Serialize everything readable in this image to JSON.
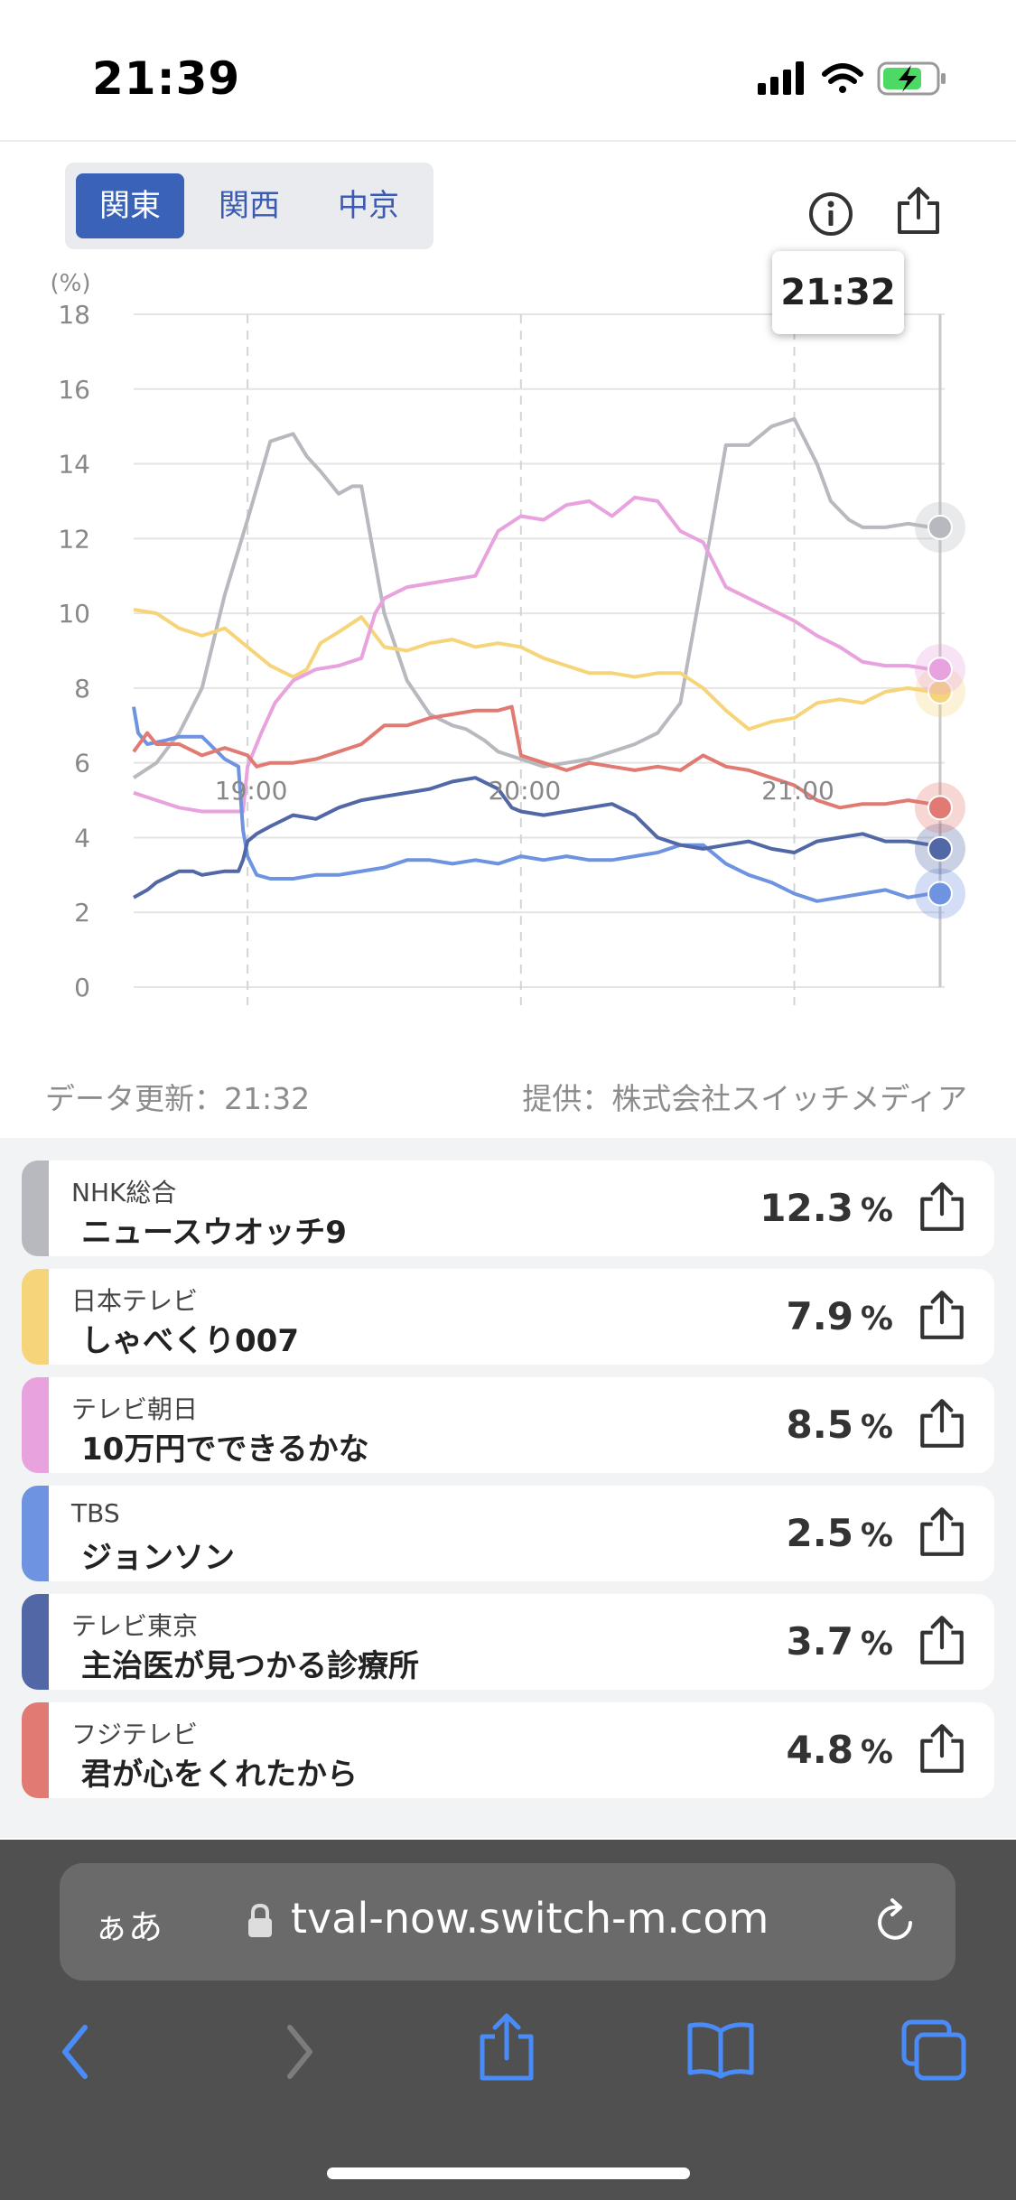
{
  "status_bar": {
    "time": "21:39"
  },
  "region_tabs": [
    {
      "label": "関東",
      "active": true
    },
    {
      "label": "関西",
      "active": false
    },
    {
      "label": "中京",
      "active": false
    }
  ],
  "tooltip_time": "21:32",
  "chart_data": {
    "type": "line",
    "ylabel": "(%)",
    "ylim": [
      0,
      18
    ],
    "yticks": [
      "0",
      "2",
      "4",
      "6",
      "8",
      "10",
      "12",
      "14",
      "16",
      "18"
    ],
    "xticks": [
      "19:00",
      "20:00",
      "21:00"
    ],
    "xlim_minutes": [
      1115,
      1293
    ],
    "series": [
      {
        "name": "NHK総合",
        "color": "#b7b9be",
        "x": [
          1115,
          1120,
          1125,
          1130,
          1135,
          1140,
          1145,
          1150,
          1153,
          1156,
          1160,
          1163,
          1165,
          1170,
          1175,
          1180,
          1185,
          1188,
          1192,
          1195,
          1200,
          1205,
          1210,
          1215,
          1220,
          1225,
          1230,
          1235,
          1240,
          1245,
          1250,
          1255,
          1260,
          1265,
          1268,
          1272,
          1275,
          1280,
          1285,
          1290,
          1292
        ],
        "values": [
          5.6,
          6.0,
          6.8,
          8.0,
          10.5,
          12.5,
          14.6,
          14.8,
          14.2,
          13.8,
          13.2,
          13.4,
          13.4,
          10.0,
          8.2,
          7.3,
          7.0,
          6.9,
          6.6,
          6.3,
          6.1,
          5.9,
          6.0,
          6.1,
          6.3,
          6.5,
          6.8,
          7.6,
          11.0,
          14.5,
          14.5,
          15.0,
          15.2,
          14.0,
          13.0,
          12.5,
          12.3,
          12.3,
          12.4,
          12.3,
          12.3
        ]
      },
      {
        "name": "日本テレビ",
        "color": "#f6d57a",
        "x": [
          1115,
          1120,
          1125,
          1130,
          1135,
          1140,
          1145,
          1150,
          1153,
          1156,
          1160,
          1165,
          1170,
          1175,
          1180,
          1185,
          1190,
          1195,
          1200,
          1205,
          1210,
          1215,
          1220,
          1225,
          1230,
          1235,
          1240,
          1245,
          1250,
          1255,
          1260,
          1265,
          1270,
          1275,
          1280,
          1285,
          1290,
          1292
        ],
        "values": [
          10.1,
          10.0,
          9.6,
          9.4,
          9.6,
          9.1,
          8.6,
          8.3,
          8.5,
          9.2,
          9.5,
          9.9,
          9.1,
          9.0,
          9.2,
          9.3,
          9.1,
          9.2,
          9.1,
          8.8,
          8.6,
          8.4,
          8.4,
          8.3,
          8.4,
          8.4,
          8.0,
          7.4,
          6.9,
          7.1,
          7.2,
          7.6,
          7.7,
          7.6,
          7.9,
          8.0,
          7.9,
          7.9
        ]
      },
      {
        "name": "テレビ朝日",
        "color": "#e8a2dd",
        "x": [
          1115,
          1120,
          1125,
          1130,
          1135,
          1139,
          1140,
          1143,
          1146,
          1150,
          1155,
          1160,
          1165,
          1168,
          1170,
          1175,
          1180,
          1185,
          1190,
          1195,
          1200,
          1205,
          1210,
          1215,
          1220,
          1225,
          1230,
          1235,
          1240,
          1245,
          1250,
          1255,
          1260,
          1265,
          1270,
          1275,
          1280,
          1285,
          1290,
          1292
        ],
        "values": [
          5.2,
          5.0,
          4.8,
          4.7,
          4.7,
          4.7,
          5.9,
          6.8,
          7.6,
          8.2,
          8.5,
          8.6,
          8.8,
          10.0,
          10.4,
          10.7,
          10.8,
          10.9,
          11.0,
          12.2,
          12.6,
          12.5,
          12.9,
          13.0,
          12.6,
          13.1,
          13.0,
          12.2,
          11.9,
          10.7,
          10.4,
          10.1,
          9.8,
          9.4,
          9.1,
          8.7,
          8.6,
          8.6,
          8.5,
          8.5
        ]
      },
      {
        "name": "TBS",
        "color": "#6e93e0",
        "x": [
          1115,
          1116,
          1118,
          1122,
          1125,
          1130,
          1135,
          1138,
          1139,
          1140,
          1142,
          1145,
          1150,
          1155,
          1160,
          1170,
          1175,
          1180,
          1185,
          1190,
          1195,
          1200,
          1205,
          1210,
          1215,
          1220,
          1225,
          1230,
          1235,
          1240,
          1245,
          1250,
          1255,
          1260,
          1265,
          1270,
          1275,
          1280,
          1285,
          1290,
          1292
        ],
        "values": [
          7.5,
          6.8,
          6.5,
          6.6,
          6.7,
          6.7,
          6.1,
          5.9,
          4.2,
          3.5,
          3.0,
          2.9,
          2.9,
          3.0,
          3.0,
          3.2,
          3.4,
          3.4,
          3.3,
          3.4,
          3.3,
          3.5,
          3.4,
          3.5,
          3.4,
          3.4,
          3.5,
          3.6,
          3.8,
          3.8,
          3.3,
          3.0,
          2.8,
          2.5,
          2.3,
          2.4,
          2.5,
          2.6,
          2.4,
          2.5,
          2.5
        ]
      },
      {
        "name": "テレビ東京",
        "color": "#5267a5",
        "x": [
          1115,
          1118,
          1120,
          1125,
          1128,
          1130,
          1135,
          1138,
          1139,
          1140,
          1142,
          1145,
          1150,
          1155,
          1160,
          1165,
          1170,
          1175,
          1180,
          1185,
          1190,
          1195,
          1198,
          1200,
          1205,
          1210,
          1215,
          1220,
          1225,
          1230,
          1235,
          1240,
          1245,
          1250,
          1255,
          1260,
          1265,
          1270,
          1275,
          1280,
          1285,
          1290,
          1292
        ],
        "values": [
          2.4,
          2.6,
          2.8,
          3.1,
          3.1,
          3.0,
          3.1,
          3.1,
          3.4,
          3.9,
          4.1,
          4.3,
          4.6,
          4.5,
          4.8,
          5.0,
          5.1,
          5.2,
          5.3,
          5.5,
          5.6,
          5.3,
          4.8,
          4.7,
          4.6,
          4.7,
          4.8,
          4.9,
          4.6,
          4.0,
          3.8,
          3.7,
          3.8,
          3.9,
          3.7,
          3.6,
          3.9,
          4.0,
          4.1,
          3.9,
          3.9,
          3.8,
          3.7
        ]
      },
      {
        "name": "フジテレビ",
        "color": "#e07a72",
        "x": [
          1115,
          1118,
          1120,
          1125,
          1130,
          1135,
          1140,
          1142,
          1145,
          1150,
          1155,
          1160,
          1165,
          1170,
          1175,
          1180,
          1185,
          1190,
          1195,
          1198,
          1200,
          1205,
          1210,
          1215,
          1220,
          1225,
          1230,
          1235,
          1240,
          1245,
          1250,
          1255,
          1260,
          1265,
          1270,
          1275,
          1280,
          1285,
          1290,
          1292
        ],
        "values": [
          6.3,
          6.8,
          6.5,
          6.5,
          6.2,
          6.4,
          6.2,
          5.9,
          6.0,
          6.0,
          6.1,
          6.3,
          6.5,
          7.0,
          7.0,
          7.2,
          7.3,
          7.4,
          7.4,
          7.5,
          6.2,
          6.0,
          5.8,
          6.0,
          5.9,
          5.8,
          5.9,
          5.8,
          6.2,
          5.9,
          5.8,
          5.6,
          5.4,
          5.0,
          4.8,
          4.9,
          4.9,
          5.0,
          4.9,
          4.8
        ]
      }
    ]
  },
  "chart_footer": {
    "updated": "データ更新：21:32",
    "provider": "提供：株式会社スイッチメディア"
  },
  "channels": [
    {
      "station": "NHK総合",
      "program": "ニュースウオッチ9",
      "rating": "12.3",
      "unit": "%",
      "color": "#b7b9be"
    },
    {
      "station": "日本テレビ",
      "program": "しゃべくり007",
      "rating": "7.9",
      "unit": "%",
      "color": "#f6d57a"
    },
    {
      "station": "テレビ朝日",
      "program": "10万円でできるかな",
      "rating": "8.5",
      "unit": "%",
      "color": "#e8a2dd"
    },
    {
      "station": "TBS",
      "program": "ジョンソン",
      "rating": "2.5",
      "unit": "%",
      "color": "#6e93e0"
    },
    {
      "station": "テレビ東京",
      "program": "主治医が見つかる診療所",
      "rating": "3.7",
      "unit": "%",
      "color": "#5267a5"
    },
    {
      "station": "フジテレビ",
      "program": "君が心をくれたから",
      "rating": "4.8",
      "unit": "%",
      "color": "#e07a72"
    }
  ],
  "safari": {
    "aa_label": "ぁあ",
    "url": "tval-now.switch-m.com"
  },
  "icons": {
    "info": "info-icon",
    "share": "share-icon",
    "lock": "lock-icon",
    "reload": "reload-icon",
    "back": "back-icon",
    "forward": "forward-icon",
    "bookmarks": "bookmarks-icon",
    "tabs": "tabs-icon"
  }
}
